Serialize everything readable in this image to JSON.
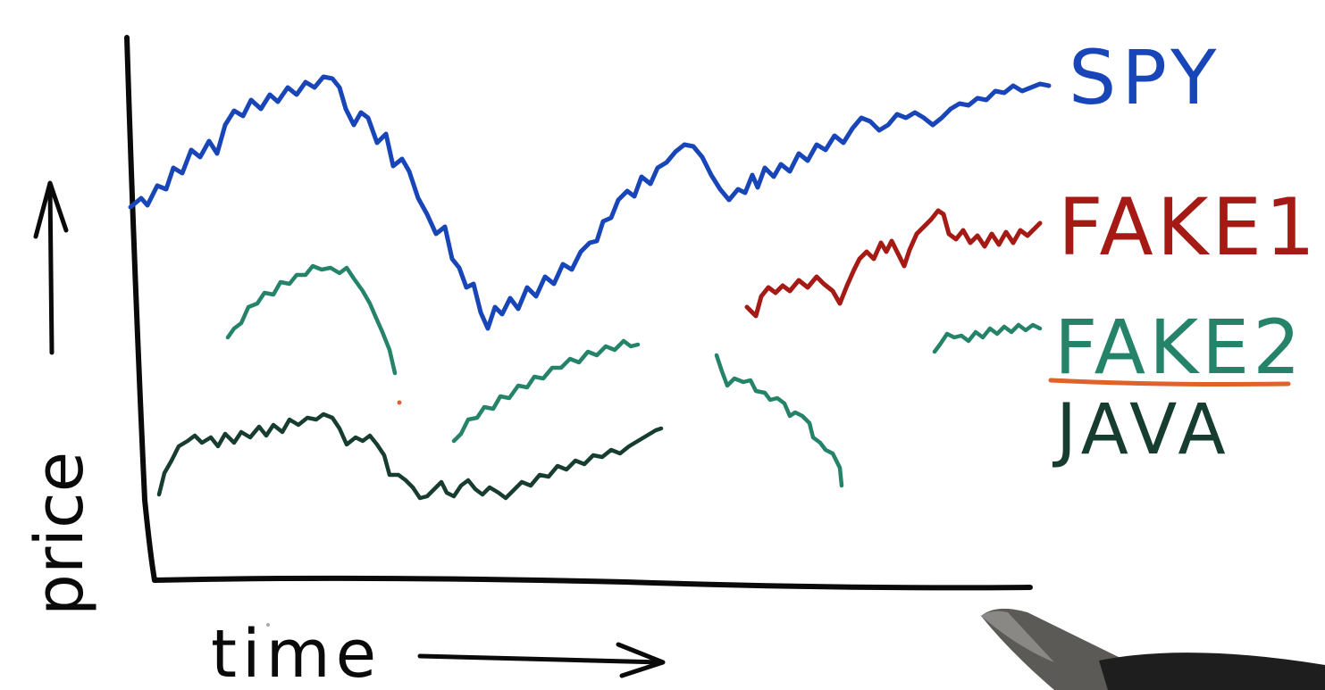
{
  "axes": {
    "y_label": "price",
    "x_label": "time"
  },
  "series_labels": [
    {
      "key": "spy",
      "label": "SPY",
      "color": "#1846b8"
    },
    {
      "key": "fake1",
      "label": "FAKE1",
      "color": "#a51a14"
    },
    {
      "key": "fake2",
      "label": "FAKE2",
      "color": "#25836a"
    },
    {
      "key": "java",
      "label": "JAVA",
      "color": "#163d30"
    }
  ],
  "colors": {
    "axis": "#0a0a0a",
    "underline": "#e0622a",
    "background": "#ffffff"
  },
  "notes": {
    "fake2_is_underlined": true,
    "fake2_segments": 4,
    "hand_pen_visible": true
  }
}
